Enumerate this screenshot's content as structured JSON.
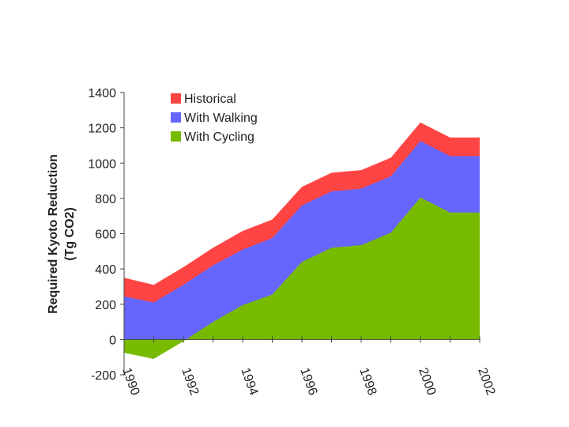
{
  "chart_data": {
    "type": "area",
    "title": "",
    "xlabel": "",
    "ylabel_lines": [
      "Required Kyoto Reduction",
      "(Tg CO2)"
    ],
    "ylim": [
      -200,
      1400
    ],
    "yticks": [
      -200,
      0,
      200,
      400,
      600,
      800,
      1000,
      1200,
      1400
    ],
    "ytick_labels": [
      "-200",
      "0",
      "200",
      "400",
      "600",
      "800",
      "1000",
      "1200",
      "1400"
    ],
    "xlim": [
      1990,
      2002
    ],
    "x": [
      1990,
      1991,
      1992,
      1993,
      1994,
      1995,
      1996,
      1997,
      1998,
      1999,
      2000,
      2001,
      2002
    ],
    "xtick_labels": [
      "1990",
      "1992",
      "1994",
      "1996",
      "1998",
      "2000",
      "2002"
    ],
    "xtick_values": [
      1990,
      1992,
      1994,
      1996,
      1998,
      2000,
      2002
    ],
    "legend_position": "top-left",
    "series": [
      {
        "name": "Historical",
        "color": "#ff4444",
        "values": [
          350,
          310,
          410,
          520,
          615,
          680,
          865,
          945,
          960,
          1030,
          1230,
          1145,
          1145
        ]
      },
      {
        "name": "With Walking",
        "color": "#6666ff",
        "values": [
          245,
          210,
          310,
          420,
          510,
          575,
          760,
          840,
          855,
          925,
          1125,
          1040,
          1040
        ]
      },
      {
        "name": "With Cycling",
        "color": "#77bb00",
        "values": [
          -75,
          -110,
          -10,
          100,
          195,
          255,
          440,
          520,
          535,
          605,
          805,
          720,
          720
        ]
      }
    ],
    "legend": [
      "Historical",
      "With Walking",
      "With Cycling"
    ]
  }
}
